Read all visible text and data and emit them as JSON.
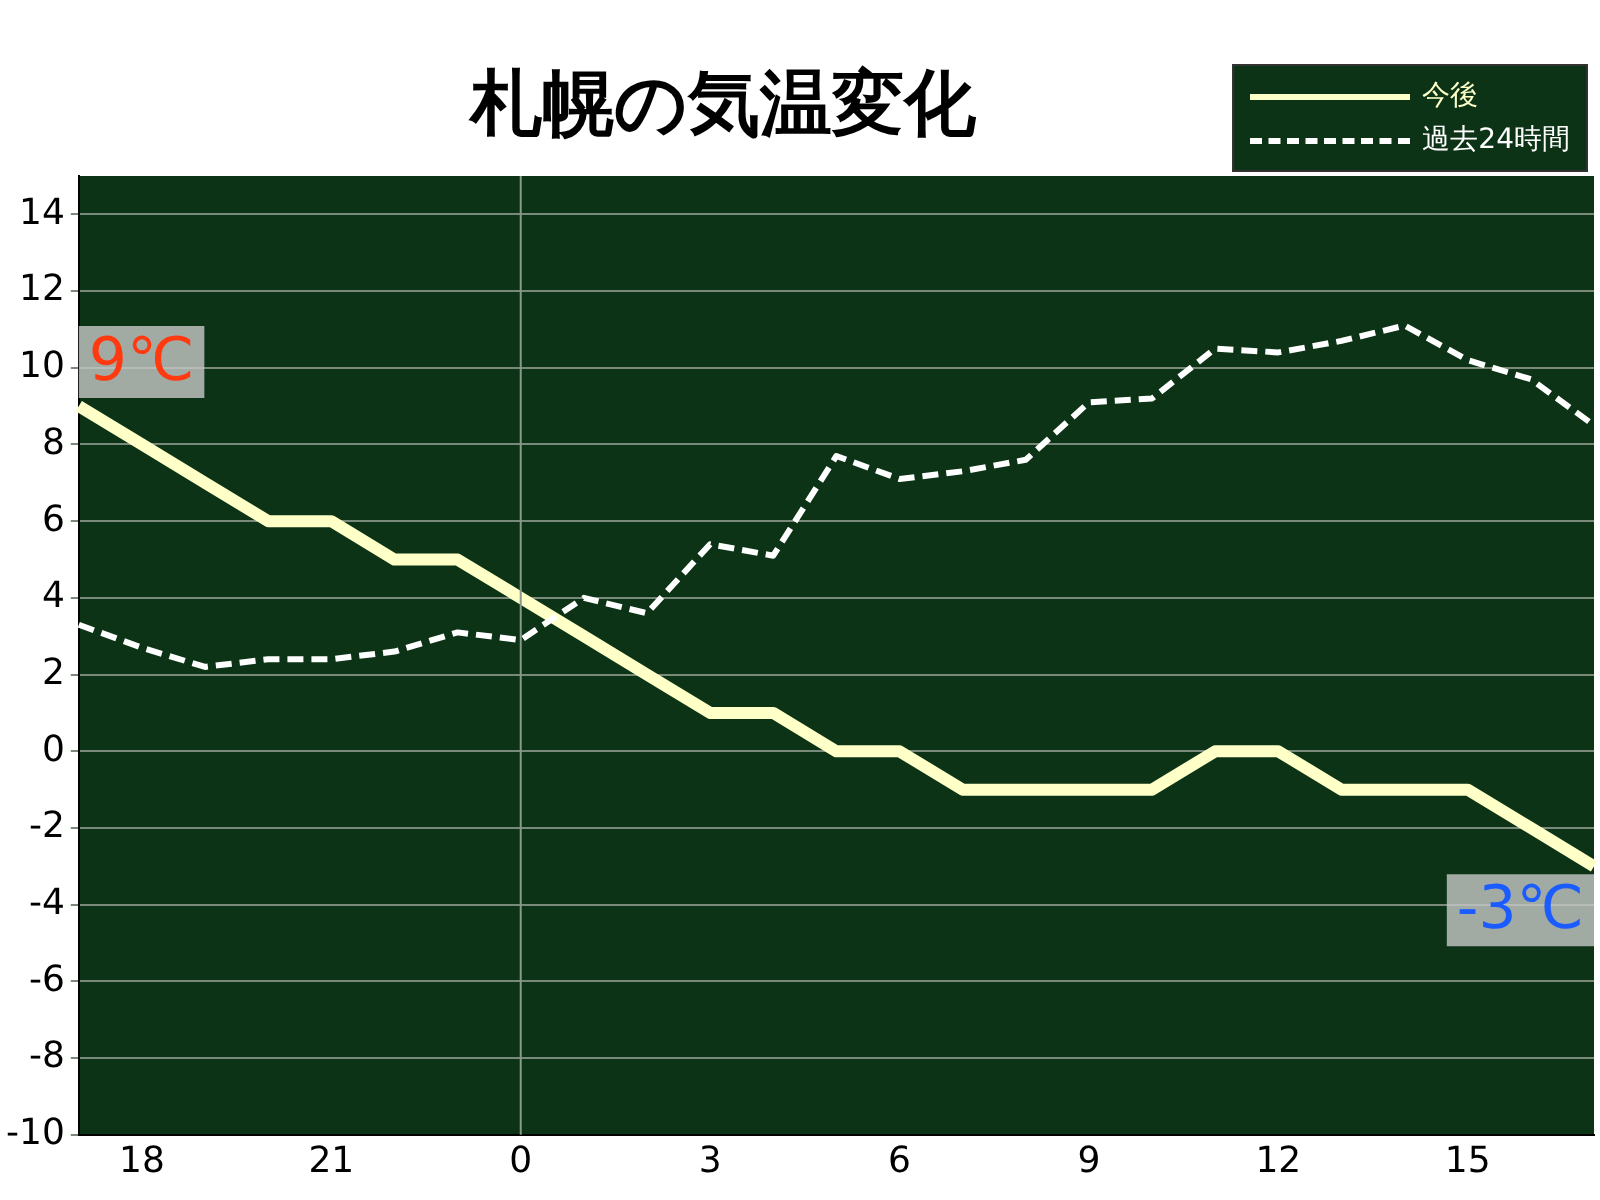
{
  "chart_data": {
    "type": "line",
    "title": "札幌の気温変化",
    "categories": [
      null,
      "18",
      null,
      null,
      "21",
      null,
      null,
      "0",
      null,
      null,
      "3",
      null,
      null,
      "6",
      null,
      null,
      "9",
      null,
      null,
      "12",
      null,
      null,
      "15",
      null,
      null
    ],
    "series": [
      {
        "name": "今後",
        "color": "#ffffc8",
        "line_style": "solid",
        "values": [
          9,
          8,
          7,
          6,
          6,
          5,
          5,
          4,
          3,
          2,
          1,
          1,
          0,
          0,
          -1,
          -1,
          -1,
          -1,
          0,
          0,
          -1,
          -1,
          -1,
          -2,
          -3
        ]
      },
      {
        "name": "過去24時間",
        "color": "#ffffff",
        "line_style": "dashed",
        "values": [
          3.3,
          2.7,
          2.2,
          2.4,
          2.4,
          2.6,
          3.1,
          2.9,
          4.0,
          3.6,
          5.4,
          5.1,
          7.7,
          7.1,
          7.3,
          7.6,
          9.1,
          9.2,
          10.5,
          10.4,
          10.7,
          11.1,
          10.2,
          9.7,
          8.5
        ]
      }
    ],
    "ylim": [
      -10,
      15
    ],
    "yticks": [
      -10,
      -8,
      -6,
      -4,
      -2,
      0,
      2,
      4,
      6,
      8,
      10,
      12,
      14
    ],
    "grid": "y",
    "legend": "top right",
    "marker": "none",
    "ref_lines": [
      {
        "axis": "x",
        "value": "0"
      }
    ],
    "annotations": [
      "9℃",
      "-3℃"
    ]
  }
}
